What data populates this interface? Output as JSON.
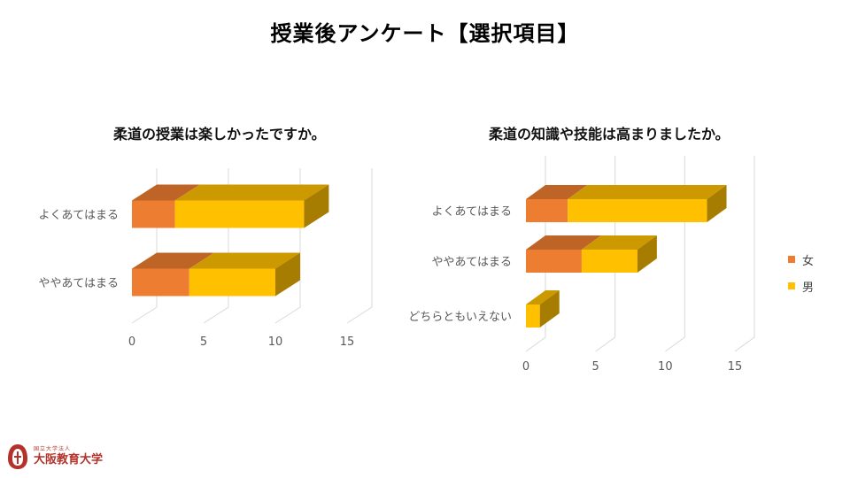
{
  "slide": {
    "title": "授業後アンケート【選択項目】"
  },
  "logo": {
    "small_text": "国立大学法人",
    "name": "大阪教育大学"
  },
  "legend": {
    "items": [
      {
        "label": "女",
        "color": "#ED7D31"
      },
      {
        "label": "男",
        "color": "#FFC000"
      }
    ]
  },
  "chart_data": [
    {
      "type": "bar",
      "orientation": "horizontal",
      "stacked": true,
      "title": "柔道の授業は楽しかったですか。",
      "categories": [
        "よくあてはまる",
        "ややあてはまる"
      ],
      "series": [
        {
          "name": "女",
          "values": [
            3,
            4
          ]
        },
        {
          "name": "男",
          "values": [
            9,
            6
          ]
        }
      ],
      "xlim": [
        0,
        15
      ],
      "xticks": [
        "0",
        "5",
        "10",
        "15"
      ],
      "grid": true
    },
    {
      "type": "bar",
      "orientation": "horizontal",
      "stacked": true,
      "title": "柔道の知識や技能は高まりましたか。",
      "categories": [
        "よくあてはまる",
        "ややあてはまる",
        "どちらともいえない"
      ],
      "series": [
        {
          "name": "女",
          "values": [
            3,
            4,
            0
          ]
        },
        {
          "name": "男",
          "values": [
            10,
            4,
            1
          ]
        }
      ],
      "xlim": [
        0,
        15
      ],
      "xticks": [
        "0",
        "5",
        "10",
        "15"
      ],
      "grid": true,
      "legend": "right"
    }
  ]
}
